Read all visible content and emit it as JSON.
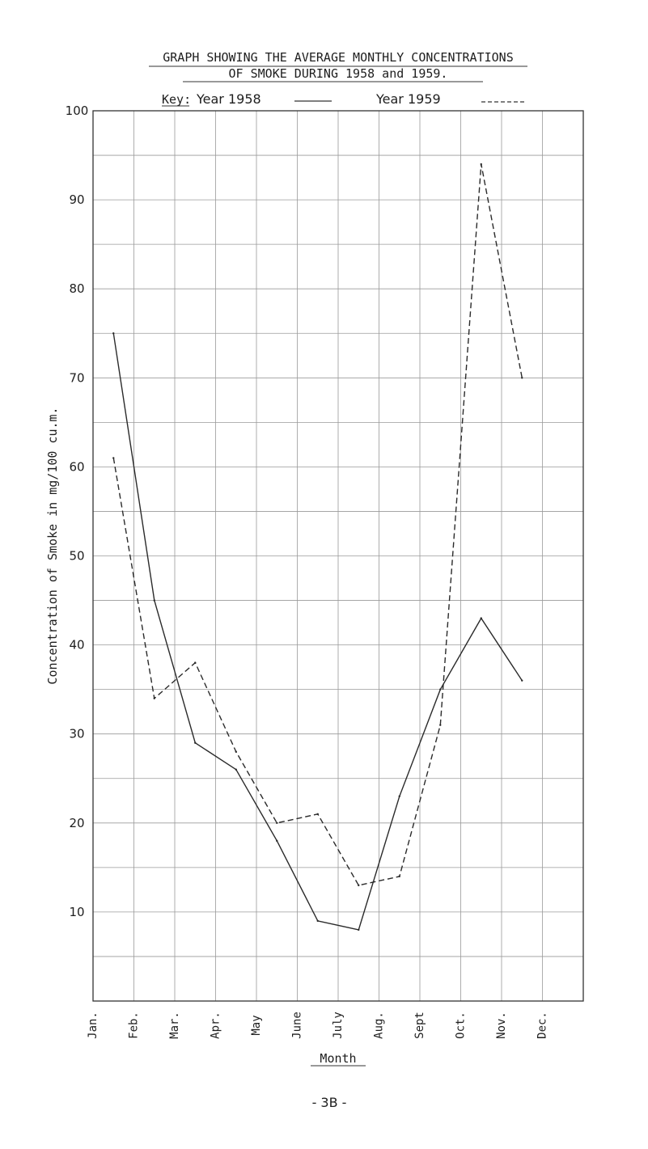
{
  "page": {
    "page_number": "- 3B -"
  },
  "chart_data": {
    "type": "line",
    "title": "GRAPH SHOWING THE AVERAGE MONTHLY CONCENTRATIONS",
    "subtitle": "OF SMOKE DURING 1958 and 1959.",
    "legend": {
      "prefix": "Key:",
      "placement": "top",
      "entries": [
        "Year 1958",
        "Year 1959"
      ]
    },
    "xlabel": "Month",
    "ylabel": "Concentration of Smoke in mg/100 cu.m.",
    "categories": [
      "Jan.",
      "Feb.",
      "Mar.",
      "Apr.",
      "May",
      "June",
      "July",
      "Aug.",
      "Sept",
      "Oct.",
      "Nov.",
      "Dec."
    ],
    "yticks": [
      "100",
      "90",
      "80",
      "70",
      "60",
      "50",
      "40",
      "30",
      "20",
      "10"
    ],
    "ylim": [
      0,
      100
    ],
    "grid": true,
    "series": [
      {
        "name": "Year 1958",
        "style": "solid",
        "values": [
          75,
          45,
          29,
          26,
          18,
          9,
          8,
          23,
          35,
          43,
          36,
          null
        ]
      },
      {
        "name": "Year 1959",
        "style": "dashed",
        "values": [
          61,
          34,
          38,
          28,
          20,
          21,
          13,
          14,
          31,
          94,
          70,
          null
        ]
      }
    ]
  }
}
